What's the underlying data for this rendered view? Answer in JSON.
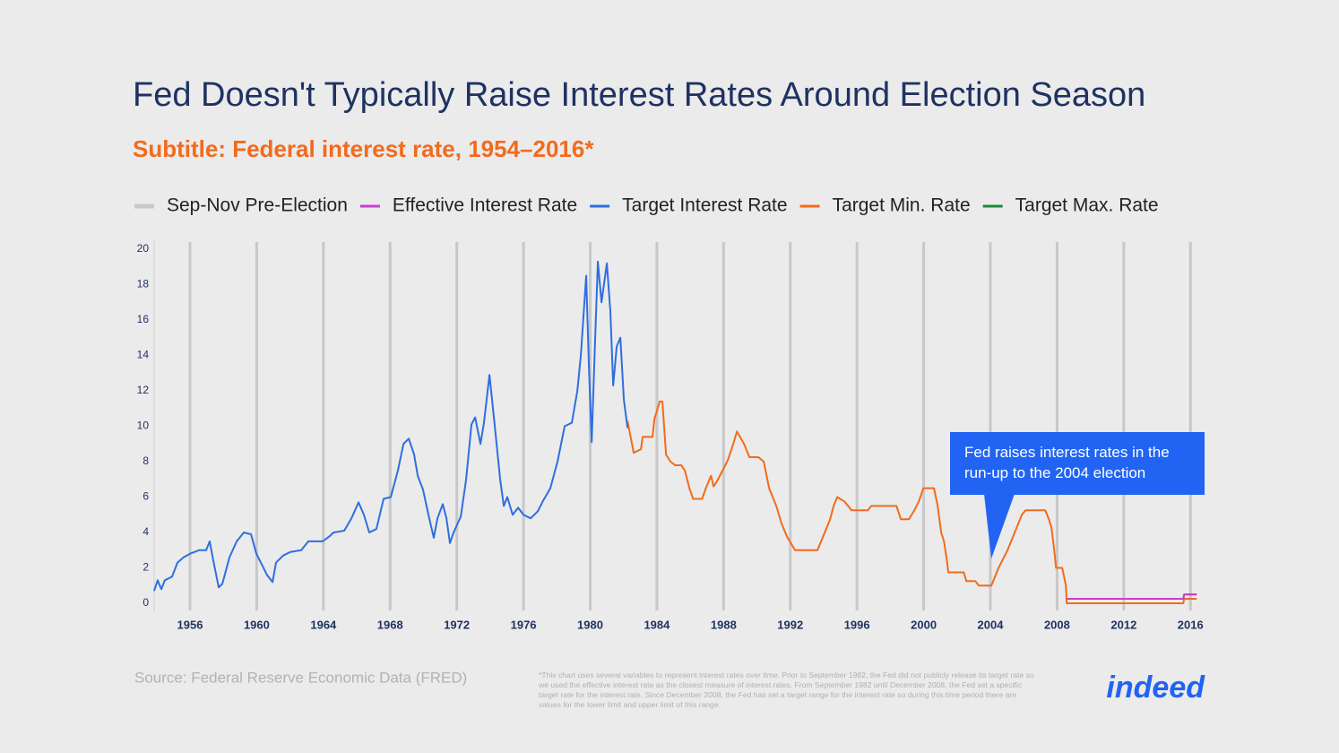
{
  "chart_data": {
    "type": "line",
    "title": "Fed Doesn't Typically Raise Interest Rates Around Election Season",
    "subtitle": "Subtitle: Federal interest rate, 1954–2016*",
    "xlim": [
      1953.85,
      2016.9
    ],
    "xticks": [
      1956,
      1960,
      1964,
      1968,
      1972,
      1976,
      1980,
      1984,
      1988,
      1992,
      1996,
      2000,
      2004,
      2008,
      2012,
      2016
    ],
    "ylim": [
      0,
      20
    ],
    "yticks": [
      0,
      2,
      4,
      6,
      8,
      10,
      12,
      14,
      16,
      18,
      20
    ],
    "series": [
      {
        "name": "Sep-Nov Pre-Election",
        "color": "#c8c8c8",
        "type": "band",
        "x": [
          1956,
          1960,
          1964,
          1968,
          1972,
          1976,
          1980,
          1984,
          1988,
          1992,
          1996,
          2000,
          2004,
          2008,
          2012,
          2016
        ]
      },
      {
        "name": "Effective Interest Rate",
        "color": "#c53fd1",
        "x": [
          2008.58,
          2015.57,
          2015.62,
          2016.37
        ],
        "values": [
          0.25,
          0.25,
          0.5,
          0.5
        ]
      },
      {
        "name": "Target Interest Rate",
        "color": "#2f6ee0",
        "x": [
          1953.85,
          1954.06,
          1954.28,
          1954.49,
          1954.92,
          1955.25,
          1955.62,
          1956.0,
          1956.54,
          1956.97,
          1957.18,
          1957.4,
          1957.72,
          1957.94,
          1958.37,
          1958.8,
          1959.23,
          1959.66,
          1959.98,
          1960.3,
          1960.62,
          1960.95,
          1961.16,
          1961.59,
          1962.02,
          1962.67,
          1963.1,
          1963.96,
          1964.39,
          1964.6,
          1965.25,
          1965.68,
          1966.11,
          1966.43,
          1966.75,
          1967.18,
          1967.61,
          1968.04,
          1968.47,
          1968.8,
          1969.12,
          1969.44,
          1969.66,
          1969.98,
          1970.3,
          1970.62,
          1970.84,
          1971.16,
          1971.38,
          1971.59,
          1971.81,
          1972.24,
          1972.56,
          1972.88,
          1973.1,
          1973.42,
          1973.63,
          1973.96,
          1974.28,
          1974.6,
          1974.82,
          1975.03,
          1975.35,
          1975.68,
          1976.0,
          1976.43,
          1976.86,
          1977.18,
          1977.61,
          1978.04,
          1978.47,
          1978.9,
          1979.23,
          1979.44,
          1979.76,
          1979.92,
          1980.09,
          1980.3,
          1980.46,
          1980.68,
          1981.0,
          1981.21,
          1981.38,
          1981.59,
          1981.81,
          1982.02,
          1982.24
        ],
        "values": [
          0.7,
          1.3,
          0.8,
          1.3,
          1.5,
          2.3,
          2.6,
          2.8,
          3.0,
          3.0,
          3.5,
          2.4,
          0.9,
          1.1,
          2.6,
          3.5,
          4.0,
          3.9,
          2.8,
          2.2,
          1.6,
          1.2,
          2.3,
          2.7,
          2.9,
          3.0,
          3.5,
          3.5,
          3.8,
          4.0,
          4.1,
          4.8,
          5.7,
          5.0,
          4.0,
          4.2,
          5.9,
          6.0,
          7.5,
          9.0,
          9.3,
          8.4,
          7.2,
          6.4,
          5.0,
          3.7,
          4.8,
          5.6,
          4.8,
          3.4,
          4.0,
          4.9,
          7.0,
          10.1,
          10.5,
          9.0,
          10.2,
          12.9,
          10.0,
          7.0,
          5.5,
          6.0,
          5.0,
          5.4,
          5.0,
          4.8,
          5.2,
          5.8,
          6.5,
          8.0,
          10.0,
          10.2,
          12.0,
          14.0,
          18.5,
          13.5,
          9.1,
          15.0,
          19.3,
          17.0,
          19.2,
          16.5,
          12.3,
          14.5,
          15.0,
          11.5,
          9.9
        ]
      },
      {
        "name": "Target Min. Rate",
        "color": "#f26b1d",
        "x": [
          1982.24,
          1982.61,
          1983.04,
          1983.15,
          1983.74,
          1983.85,
          1984.17,
          1984.33,
          1984.55,
          1984.82,
          1985.09,
          1985.46,
          1985.68,
          1985.95,
          1986.17,
          1986.71,
          1986.98,
          1987.25,
          1987.4,
          1987.61,
          1987.94,
          1988.26,
          1988.58,
          1988.8,
          1989.23,
          1989.55,
          1990.09,
          1990.41,
          1990.73,
          1991.16,
          1991.48,
          1991.81,
          1992.13,
          1992.29,
          1993.63,
          1993.96,
          1994.39,
          1994.6,
          1994.82,
          1995.25,
          1995.68,
          1996.65,
          1996.86,
          1998.37,
          1998.63,
          1999.12,
          1999.44,
          1999.71,
          1999.98,
          2000.62,
          2000.84,
          2001.05,
          2001.22,
          2001.38,
          2001.48,
          2002.4,
          2002.56,
          2003.1,
          2003.31,
          2004.06,
          2004.17,
          2004.49,
          2005.03,
          2005.46,
          2005.89,
          2006.11,
          2007.29,
          2007.51,
          2007.67,
          2007.83,
          2007.94,
          2008.31,
          2008.53,
          2008.58,
          2015.57,
          2015.62,
          2016.37
        ],
        "values": [
          10.3,
          8.5,
          8.7,
          9.4,
          9.4,
          10.4,
          11.4,
          11.4,
          8.4,
          8.0,
          7.8,
          7.8,
          7.5,
          6.5,
          5.9,
          5.9,
          6.6,
          7.2,
          6.6,
          6.9,
          7.5,
          8.1,
          9.0,
          9.7,
          9.0,
          8.25,
          8.25,
          8.0,
          6.5,
          5.5,
          4.5,
          3.75,
          3.25,
          3.0,
          3.0,
          3.75,
          4.75,
          5.5,
          6.0,
          5.75,
          5.25,
          5.25,
          5.5,
          5.5,
          4.75,
          4.75,
          5.25,
          5.75,
          6.5,
          6.5,
          5.5,
          4.0,
          3.5,
          2.5,
          1.75,
          1.75,
          1.25,
          1.25,
          1.0,
          1.0,
          1.25,
          2.0,
          3.0,
          4.0,
          5.0,
          5.25,
          5.25,
          4.75,
          4.25,
          3.0,
          2.0,
          2.0,
          1.0,
          0,
          0,
          0.25,
          0.25
        ]
      },
      {
        "name": "Target Max. Rate",
        "color": "#1a8a3b",
        "x": [
          2008.58,
          2015.57,
          2015.62,
          2016.37
        ],
        "values": [
          0.25,
          0.25,
          0.5,
          0.5
        ]
      }
    ],
    "annotation": {
      "text": "Fed raises interest rates in the run-up to the 2004 election",
      "x": 2004.06,
      "y": 1.0
    },
    "source": "Source: Federal Reserve Economic Data (FRED)",
    "footnote": "*This chart uses several variables to represent interest rates over time. Prior to September 1982, the Fed did not publicly release its target rate so we used the effective interest rate as the closest measure of interest rates. From September 1982 until December 2008, the Fed set a specific target rate for the interest rate. Since December 2008, the Fed has set a target range for the interest rate so during this time period there are values for the lower limit and upper limit of this range.",
    "brand": "indeed"
  }
}
